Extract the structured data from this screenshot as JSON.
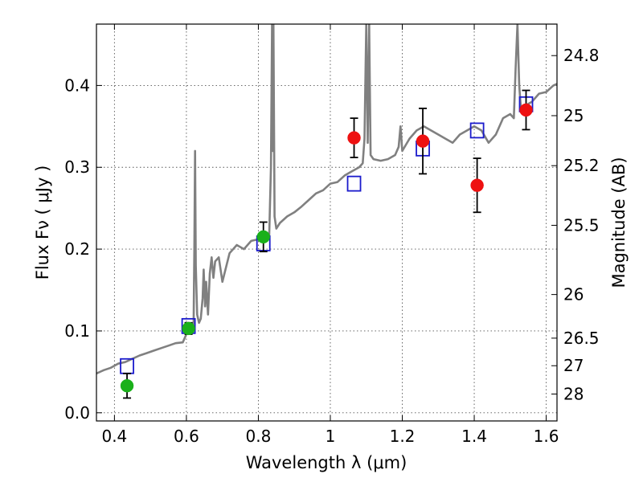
{
  "chart_data": {
    "type": "scatter",
    "xlabel": "Wavelength  λ (μm)",
    "ylabel": "Flux  Fν  ( μJy )",
    "ylabel_right": "Magnitude (AB)",
    "xlim": [
      0.35,
      1.63
    ],
    "ylim": [
      -0.01,
      0.475
    ],
    "grid": true,
    "x_ticks": [
      0.4,
      0.6,
      0.8,
      1.0,
      1.2,
      1.4,
      1.6
    ],
    "x_tick_labels": [
      "0.4",
      "0.6",
      "0.8",
      "1",
      "1.2",
      "1.4",
      "1.6"
    ],
    "y_ticks": [
      0.0,
      0.1,
      0.2,
      0.3,
      0.4
    ],
    "y_tick_labels": [
      "0.0",
      "0.1",
      "0.2",
      "0.3",
      "0.4"
    ],
    "mag_ticks": [
      {
        "label": "24.8",
        "flux": 0.4365
      },
      {
        "label": "25",
        "flux": 0.3631
      },
      {
        "label": "25.2",
        "flux": 0.302
      },
      {
        "label": "25.5",
        "flux": 0.2291
      },
      {
        "label": "26",
        "flux": 0.1445
      },
      {
        "label": "26.5",
        "flux": 0.0912
      },
      {
        "label": "27",
        "flux": 0.0575
      },
      {
        "label": "28",
        "flux": 0.0229
      }
    ],
    "colors": {
      "green": "#1ab01a",
      "red": "#ee1111",
      "model_box": "#1a1acc",
      "spectrum": "#808080"
    },
    "series": [
      {
        "marker": "circle",
        "color": "#1ab01a",
        "points": [
          {
            "x": 0.435,
            "y": 0.033,
            "err": 0.015
          },
          {
            "x": 0.606,
            "y": 0.103,
            "err": 0.007
          },
          {
            "x": 0.814,
            "y": 0.215,
            "err": 0.018
          }
        ]
      },
      {
        "marker": "circle",
        "color": "#ee1111",
        "points": [
          {
            "x": 1.066,
            "y": 0.336,
            "err": 0.024
          },
          {
            "x": 1.257,
            "y": 0.332,
            "err": 0.04
          },
          {
            "x": 1.408,
            "y": 0.278,
            "err": 0.033
          },
          {
            "x": 1.544,
            "y": 0.37,
            "err": 0.024
          }
        ]
      },
      {
        "marker": "open-square",
        "color": "#1a1acc",
        "points": [
          {
            "x": 0.435,
            "y": 0.057
          },
          {
            "x": 0.606,
            "y": 0.106
          },
          {
            "x": 0.814,
            "y": 0.207
          },
          {
            "x": 1.066,
            "y": 0.28
          },
          {
            "x": 1.257,
            "y": 0.323
          },
          {
            "x": 1.408,
            "y": 0.345
          },
          {
            "x": 1.544,
            "y": 0.377
          }
        ]
      },
      {
        "marker": "line",
        "color": "#808080",
        "x": [
          0.35,
          0.37,
          0.39,
          0.41,
          0.43,
          0.45,
          0.47,
          0.49,
          0.51,
          0.53,
          0.55,
          0.57,
          0.59,
          0.6,
          0.605,
          0.61,
          0.615,
          0.62,
          0.622,
          0.624,
          0.626,
          0.63,
          0.635,
          0.64,
          0.645,
          0.648,
          0.652,
          0.655,
          0.66,
          0.665,
          0.67,
          0.675,
          0.68,
          0.69,
          0.7,
          0.72,
          0.74,
          0.76,
          0.78,
          0.8,
          0.82,
          0.83,
          0.835,
          0.838,
          0.84,
          0.842,
          0.845,
          0.85,
          0.86,
          0.88,
          0.9,
          0.92,
          0.94,
          0.96,
          0.98,
          1.0,
          1.02,
          1.04,
          1.06,
          1.08,
          1.09,
          1.095,
          1.1,
          1.104,
          1.108,
          1.112,
          1.12,
          1.14,
          1.16,
          1.18,
          1.19,
          1.195,
          1.2,
          1.22,
          1.24,
          1.26,
          1.28,
          1.3,
          1.32,
          1.34,
          1.36,
          1.38,
          1.4,
          1.42,
          1.44,
          1.46,
          1.48,
          1.5,
          1.51,
          1.515,
          1.52,
          1.525,
          1.53,
          1.54,
          1.56,
          1.58,
          1.6,
          1.62,
          1.63
        ],
        "y": [
          0.048,
          0.052,
          0.055,
          0.06,
          0.062,
          0.066,
          0.07,
          0.073,
          0.076,
          0.079,
          0.082,
          0.085,
          0.086,
          0.096,
          0.102,
          0.105,
          0.1,
          0.11,
          0.2,
          0.32,
          0.18,
          0.12,
          0.11,
          0.115,
          0.14,
          0.175,
          0.13,
          0.16,
          0.12,
          0.17,
          0.19,
          0.165,
          0.185,
          0.19,
          0.16,
          0.195,
          0.205,
          0.2,
          0.21,
          0.212,
          0.218,
          0.215,
          0.3,
          0.475,
          0.32,
          0.475,
          0.24,
          0.225,
          0.232,
          0.24,
          0.245,
          0.252,
          0.26,
          0.268,
          0.272,
          0.28,
          0.282,
          0.29,
          0.295,
          0.3,
          0.305,
          0.335,
          0.475,
          0.33,
          0.475,
          0.315,
          0.31,
          0.308,
          0.31,
          0.315,
          0.325,
          0.35,
          0.32,
          0.335,
          0.345,
          0.35,
          0.345,
          0.34,
          0.335,
          0.33,
          0.34,
          0.345,
          0.35,
          0.345,
          0.33,
          0.34,
          0.36,
          0.365,
          0.36,
          0.42,
          0.475,
          0.4,
          0.37,
          0.375,
          0.38,
          0.39,
          0.392,
          0.4,
          0.402
        ]
      }
    ]
  }
}
